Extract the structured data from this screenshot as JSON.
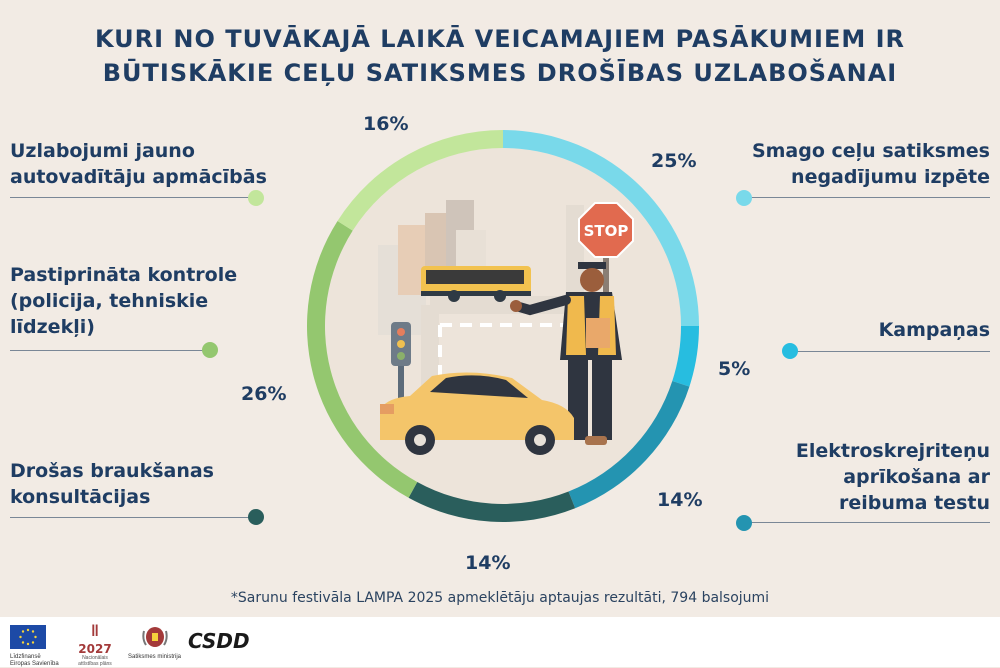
{
  "title": {
    "line1": "KURI NO TUVĀKAJĀ LAIKĀ VEICAMAJIEM PASĀKUMIEM IR",
    "line2": "BŪTISKĀKIE CEĻU SATIKSMES DROŠĪBAS UZLABOŠANAI"
  },
  "chart_data": {
    "type": "pie",
    "title": "KURI NO TUVĀKAJĀ LAIKĀ VEICAMAJIEM PASĀKUMIEM IR BŪTISKĀKIE CEĻU SATIKSMES DROŠĪBAS UZLABOŠANAI",
    "donut": true,
    "start": "top",
    "direction": "clockwise",
    "slices": [
      {
        "label": "Smago ceļu satiksmes negadījumu izpēte",
        "value": 25,
        "value_label": "25%",
        "color": "#79d9ea"
      },
      {
        "label": "Kampaņas",
        "value": 5,
        "value_label": "5%",
        "color": "#27bde0"
      },
      {
        "label": "Elektroskrejriteņu aprīkošana ar reibuma testu",
        "value": 14,
        "value_label": "14%",
        "color": "#2494b1"
      },
      {
        "label": "Drošas braukšanas konsultācijas",
        "value": 14,
        "value_label": "14%",
        "color": "#2a5e5c"
      },
      {
        "label": "Pastiprināta kontrole (policija, tehniskie līdzekļi)",
        "value": 26,
        "value_label": "26%",
        "color": "#94c76f"
      },
      {
        "label": "Uzlabojumi jauno autovadītāju apmācībās",
        "value": 16,
        "value_label": "16%",
        "color": "#c2e69b"
      }
    ]
  },
  "labels": {
    "left1": [
      "Uzlabojumi jauno",
      "autovadītāju apmācībās"
    ],
    "left2": [
      "Pastiprināta kontrole",
      "(policija, tehniskie",
      "līdzekļi)"
    ],
    "left3": [
      "Drošas braukšanas",
      "konsultācijas"
    ],
    "right1": [
      "Smago ceļu satiksmes",
      "negadījumu izpēte"
    ],
    "right2": [
      "Kampaņas"
    ],
    "right3": [
      "Elektroskrejriteņu",
      "aprīkošana ar",
      "reibuma testu"
    ]
  },
  "illustration": {
    "stop_sign": "STOP"
  },
  "footnote": "*Sarunu festivāla LAMPA 2025 apmeklētāju aptaujas rezultāti, 794 balsojumi",
  "footer": {
    "eu_text": "Līdzfinansē Eiropas Savienība",
    "plan_number": "2027",
    "plan_text": "Nacionālais attīstības plāns",
    "ministry_text": "Satiksmes ministrija",
    "csdd": "CSDD"
  },
  "colors": {
    "title": "#1f3d63",
    "background": "#f2ebe4",
    "dots": {
      "left1": "#c2e69b",
      "left2": "#94c76f",
      "left3": "#2a5e5c",
      "right1": "#79d9ea",
      "right2": "#27bde0",
      "right3": "#2494b1"
    }
  },
  "icons": [
    "eu-flag-icon",
    "latvia-coat-of-arms-icon",
    "road-scene-illustration"
  ]
}
